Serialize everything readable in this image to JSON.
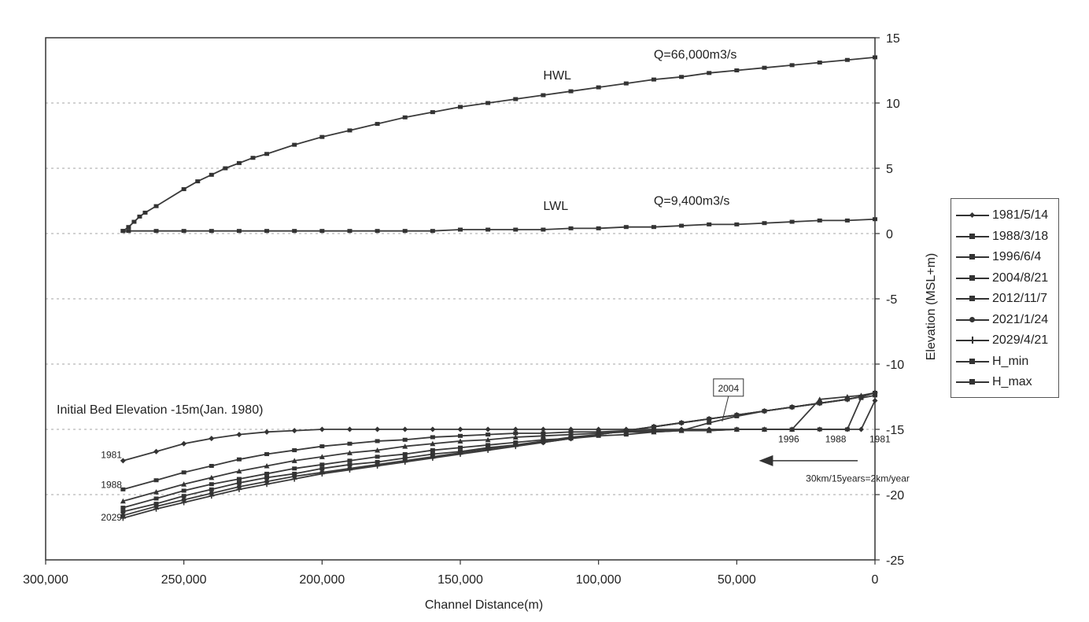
{
  "chart_data": {
    "type": "line",
    "xlabel": "Channel Distance(m)",
    "ylabel": "Elevation (MSL+m)",
    "xlim": [
      300000,
      0
    ],
    "ylim": [
      -25,
      15
    ],
    "x_ticks": [
      "300,000",
      "250,000",
      "200,000",
      "150,000",
      "100,000",
      "50,000",
      "0"
    ],
    "x_tick_values": [
      300000,
      250000,
      200000,
      150000,
      100000,
      50000,
      0
    ],
    "y_ticks": [
      "15",
      "10",
      "5",
      "0",
      "-5",
      "-10",
      "-15",
      "-20",
      "-25"
    ],
    "y_tick_values": [
      15,
      10,
      5,
      0,
      -5,
      -10,
      -15,
      -20,
      -25
    ],
    "grid": "horizontal dashed",
    "legend_position": "right",
    "legend": [
      "1981/5/14",
      "1988/3/18",
      "1996/6/4",
      "2004/8/21",
      "2012/11/7",
      "2021/1/24",
      "2029/4/21",
      "H_min",
      "H_max"
    ],
    "profile_x": [
      272000,
      260000,
      250000,
      240000,
      230000,
      220000,
      210000,
      200000,
      190000,
      180000,
      170000,
      160000,
      150000,
      140000,
      130000,
      120000,
      110000,
      100000,
      90000,
      80000,
      70000,
      60000,
      50000,
      40000,
      30000,
      20000,
      10000,
      5000,
      0
    ],
    "series": [
      {
        "name": "1981/5/14",
        "marker": "diamond",
        "y": [
          -17.4,
          -16.7,
          -16.1,
          -15.7,
          -15.4,
          -15.2,
          -15.1,
          -15.0,
          -15.0,
          -15.0,
          -15.0,
          -15.0,
          -15.0,
          -15.0,
          -15.0,
          -15.0,
          -15.0,
          -15.0,
          -15.0,
          -15.0,
          -15.0,
          -15.0,
          -15.0,
          -15.0,
          -15.0,
          -15.0,
          -15.0,
          -15.0,
          -12.8
        ]
      },
      {
        "name": "1988/3/18",
        "marker": "square",
        "y": [
          -19.6,
          -18.9,
          -18.3,
          -17.8,
          -17.3,
          -16.9,
          -16.6,
          -16.3,
          -16.1,
          -15.9,
          -15.8,
          -15.6,
          -15.5,
          -15.4,
          -15.3,
          -15.3,
          -15.2,
          -15.2,
          -15.1,
          -15.1,
          -15.1,
          -15.1,
          -15.0,
          -15.0,
          -15.0,
          -15.0,
          -15.0,
          -12.6,
          -12.4
        ]
      },
      {
        "name": "1996/6/4",
        "marker": "triangle",
        "y": [
          -20.5,
          -19.8,
          -19.2,
          -18.7,
          -18.2,
          -17.8,
          -17.4,
          -17.1,
          -16.8,
          -16.6,
          -16.3,
          -16.1,
          -15.9,
          -15.8,
          -15.6,
          -15.5,
          -15.4,
          -15.3,
          -15.2,
          -15.2,
          -15.1,
          -15.1,
          -15.0,
          -15.0,
          -15.0,
          -12.7,
          -12.5,
          -12.4,
          -12.2
        ]
      },
      {
        "name": "2004/8/21",
        "marker": "square",
        "y": [
          -21.0,
          -20.3,
          -19.7,
          -19.2,
          -18.8,
          -18.4,
          -18.0,
          -17.7,
          -17.4,
          -17.1,
          -16.9,
          -16.6,
          -16.4,
          -16.2,
          -16.0,
          -15.8,
          -15.7,
          -15.5,
          -15.4,
          -15.2,
          -15.1,
          -14.5,
          -14.0,
          -13.6,
          -13.3,
          -13.0,
          -12.7,
          -12.5,
          -12.2
        ]
      },
      {
        "name": "2012/11/7",
        "marker": "square",
        "y": [
          -21.3,
          -20.7,
          -20.1,
          -19.6,
          -19.1,
          -18.7,
          -18.4,
          -18.0,
          -17.7,
          -17.5,
          -17.2,
          -16.9,
          -16.7,
          -16.4,
          -16.2,
          -15.9,
          -15.6,
          -15.4,
          -15.1,
          -14.8,
          -14.5,
          -14.2,
          -13.9,
          -13.6,
          -13.3,
          -13.0,
          -12.7,
          -12.5,
          -12.2
        ]
      },
      {
        "name": "2021/1/24",
        "marker": "round",
        "y": [
          -21.6,
          -20.9,
          -20.4,
          -19.9,
          -19.4,
          -19.0,
          -18.6,
          -18.3,
          -18.0,
          -17.7,
          -17.4,
          -17.1,
          -16.8,
          -16.5,
          -16.2,
          -16.0,
          -15.7,
          -15.4,
          -15.1,
          -14.8,
          -14.5,
          -14.2,
          -13.9,
          -13.6,
          -13.3,
          -13.0,
          -12.7,
          -12.5,
          -12.2
        ]
      },
      {
        "name": "2029/4/21",
        "marker": "plus",
        "y": [
          -21.8,
          -21.1,
          -20.6,
          -20.1,
          -19.6,
          -19.2,
          -18.8,
          -18.4,
          -18.1,
          -17.8,
          -17.5,
          -17.2,
          -16.9,
          -16.6,
          -16.3,
          -16.0,
          -15.7,
          -15.4,
          -15.1,
          -14.8,
          -14.5,
          -14.2,
          -13.9,
          -13.6,
          -13.3,
          -13.0,
          -12.7,
          -12.5,
          -12.2
        ]
      },
      {
        "name": "H_min",
        "marker": "square",
        "x": [
          272000,
          270000,
          260000,
          250000,
          240000,
          230000,
          220000,
          210000,
          200000,
          190000,
          180000,
          170000,
          160000,
          150000,
          140000,
          130000,
          120000,
          110000,
          100000,
          90000,
          80000,
          70000,
          60000,
          50000,
          40000,
          30000,
          20000,
          10000,
          0
        ],
        "y": [
          0.2,
          0.2,
          0.2,
          0.2,
          0.2,
          0.2,
          0.2,
          0.2,
          0.2,
          0.2,
          0.2,
          0.2,
          0.2,
          0.3,
          0.3,
          0.3,
          0.3,
          0.4,
          0.4,
          0.5,
          0.5,
          0.6,
          0.7,
          0.7,
          0.8,
          0.9,
          1.0,
          1.0,
          1.1
        ]
      },
      {
        "name": "H_max",
        "marker": "square",
        "x": [
          272000,
          270000,
          268000,
          266000,
          264000,
          260000,
          250000,
          245000,
          240000,
          235000,
          230000,
          225000,
          220000,
          210000,
          200000,
          190000,
          180000,
          170000,
          160000,
          150000,
          140000,
          130000,
          120000,
          110000,
          100000,
          90000,
          80000,
          70000,
          60000,
          50000,
          40000,
          30000,
          20000,
          10000,
          0
        ],
        "y": [
          0.2,
          0.5,
          0.9,
          1.3,
          1.6,
          2.1,
          3.4,
          4.0,
          4.5,
          5.0,
          5.4,
          5.8,
          6.1,
          6.8,
          7.4,
          7.9,
          8.4,
          8.9,
          9.3,
          9.7,
          10.0,
          10.3,
          10.6,
          10.9,
          11.2,
          11.5,
          11.8,
          12.0,
          12.3,
          12.5,
          12.7,
          12.9,
          13.1,
          13.3,
          13.5
        ]
      }
    ],
    "annotations": [
      {
        "text": "Q=66,000m3/s",
        "x": 80000,
        "y": 13.4
      },
      {
        "text": "HWL",
        "x": 120000,
        "y": 11.8
      },
      {
        "text": "Q=9,400m3/s",
        "x": 80000,
        "y": 2.2
      },
      {
        "text": "LWL",
        "x": 120000,
        "y": 1.8
      },
      {
        "text": "Initial Bed Elevation -15m(Jan. 1980)",
        "x": 296000,
        "y": -13.8
      },
      {
        "text": "1981",
        "x": 280000,
        "y": -17.2
      },
      {
        "text": "1988",
        "x": 280000,
        "y": -19.5
      },
      {
        "text": "2029",
        "x": 280000,
        "y": -22.0
      },
      {
        "text": "1996",
        "x": 35000,
        "y": -16.0
      },
      {
        "text": "1988",
        "x": 18000,
        "y": -16.0
      },
      {
        "text": "1981",
        "x": 2000,
        "y": -16.0
      },
      {
        "text": "2004",
        "x": 53000,
        "y": -12.1,
        "boxed": true
      },
      {
        "text": "30km/15years=2km/year",
        "x": 25000,
        "y": -19.0
      }
    ],
    "arrow": {
      "from_x": 0,
      "to_x": 42000,
      "y": -17.4
    }
  }
}
